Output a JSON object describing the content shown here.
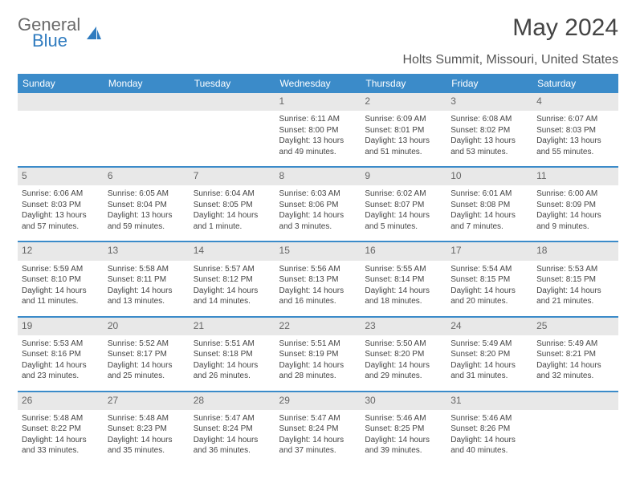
{
  "logo": {
    "general": "General",
    "blue": "Blue",
    "general_color": "#6a6a6a",
    "blue_color": "#2f7bbf",
    "icon_color": "#2f7bbf"
  },
  "title": "May 2024",
  "location": "Holts Summit, Missouri, United States",
  "colors": {
    "header_bg": "#3b8bc9",
    "header_text": "#ffffff",
    "separator": "#3b8bc9",
    "daynum_bg": "#e8e8e8",
    "text": "#444444"
  },
  "day_headers": [
    "Sunday",
    "Monday",
    "Tuesday",
    "Wednesday",
    "Thursday",
    "Friday",
    "Saturday"
  ],
  "weeks": [
    [
      null,
      null,
      null,
      {
        "n": "1",
        "sunrise": "6:11 AM",
        "sunset": "8:00 PM",
        "dl": "13 hours and 49 minutes."
      },
      {
        "n": "2",
        "sunrise": "6:09 AM",
        "sunset": "8:01 PM",
        "dl": "13 hours and 51 minutes."
      },
      {
        "n": "3",
        "sunrise": "6:08 AM",
        "sunset": "8:02 PM",
        "dl": "13 hours and 53 minutes."
      },
      {
        "n": "4",
        "sunrise": "6:07 AM",
        "sunset": "8:03 PM",
        "dl": "13 hours and 55 minutes."
      }
    ],
    [
      {
        "n": "5",
        "sunrise": "6:06 AM",
        "sunset": "8:03 PM",
        "dl": "13 hours and 57 minutes."
      },
      {
        "n": "6",
        "sunrise": "6:05 AM",
        "sunset": "8:04 PM",
        "dl": "13 hours and 59 minutes."
      },
      {
        "n": "7",
        "sunrise": "6:04 AM",
        "sunset": "8:05 PM",
        "dl": "14 hours and 1 minute."
      },
      {
        "n": "8",
        "sunrise": "6:03 AM",
        "sunset": "8:06 PM",
        "dl": "14 hours and 3 minutes."
      },
      {
        "n": "9",
        "sunrise": "6:02 AM",
        "sunset": "8:07 PM",
        "dl": "14 hours and 5 minutes."
      },
      {
        "n": "10",
        "sunrise": "6:01 AM",
        "sunset": "8:08 PM",
        "dl": "14 hours and 7 minutes."
      },
      {
        "n": "11",
        "sunrise": "6:00 AM",
        "sunset": "8:09 PM",
        "dl": "14 hours and 9 minutes."
      }
    ],
    [
      {
        "n": "12",
        "sunrise": "5:59 AM",
        "sunset": "8:10 PM",
        "dl": "14 hours and 11 minutes."
      },
      {
        "n": "13",
        "sunrise": "5:58 AM",
        "sunset": "8:11 PM",
        "dl": "14 hours and 13 minutes."
      },
      {
        "n": "14",
        "sunrise": "5:57 AM",
        "sunset": "8:12 PM",
        "dl": "14 hours and 14 minutes."
      },
      {
        "n": "15",
        "sunrise": "5:56 AM",
        "sunset": "8:13 PM",
        "dl": "14 hours and 16 minutes."
      },
      {
        "n": "16",
        "sunrise": "5:55 AM",
        "sunset": "8:14 PM",
        "dl": "14 hours and 18 minutes."
      },
      {
        "n": "17",
        "sunrise": "5:54 AM",
        "sunset": "8:15 PM",
        "dl": "14 hours and 20 minutes."
      },
      {
        "n": "18",
        "sunrise": "5:53 AM",
        "sunset": "8:15 PM",
        "dl": "14 hours and 21 minutes."
      }
    ],
    [
      {
        "n": "19",
        "sunrise": "5:53 AM",
        "sunset": "8:16 PM",
        "dl": "14 hours and 23 minutes."
      },
      {
        "n": "20",
        "sunrise": "5:52 AM",
        "sunset": "8:17 PM",
        "dl": "14 hours and 25 minutes."
      },
      {
        "n": "21",
        "sunrise": "5:51 AM",
        "sunset": "8:18 PM",
        "dl": "14 hours and 26 minutes."
      },
      {
        "n": "22",
        "sunrise": "5:51 AM",
        "sunset": "8:19 PM",
        "dl": "14 hours and 28 minutes."
      },
      {
        "n": "23",
        "sunrise": "5:50 AM",
        "sunset": "8:20 PM",
        "dl": "14 hours and 29 minutes."
      },
      {
        "n": "24",
        "sunrise": "5:49 AM",
        "sunset": "8:20 PM",
        "dl": "14 hours and 31 minutes."
      },
      {
        "n": "25",
        "sunrise": "5:49 AM",
        "sunset": "8:21 PM",
        "dl": "14 hours and 32 minutes."
      }
    ],
    [
      {
        "n": "26",
        "sunrise": "5:48 AM",
        "sunset": "8:22 PM",
        "dl": "14 hours and 33 minutes."
      },
      {
        "n": "27",
        "sunrise": "5:48 AM",
        "sunset": "8:23 PM",
        "dl": "14 hours and 35 minutes."
      },
      {
        "n": "28",
        "sunrise": "5:47 AM",
        "sunset": "8:24 PM",
        "dl": "14 hours and 36 minutes."
      },
      {
        "n": "29",
        "sunrise": "5:47 AM",
        "sunset": "8:24 PM",
        "dl": "14 hours and 37 minutes."
      },
      {
        "n": "30",
        "sunrise": "5:46 AM",
        "sunset": "8:25 PM",
        "dl": "14 hours and 39 minutes."
      },
      {
        "n": "31",
        "sunrise": "5:46 AM",
        "sunset": "8:26 PM",
        "dl": "14 hours and 40 minutes."
      },
      null
    ]
  ],
  "labels": {
    "sunrise": "Sunrise:",
    "sunset": "Sunset:",
    "daylight": "Daylight:"
  }
}
